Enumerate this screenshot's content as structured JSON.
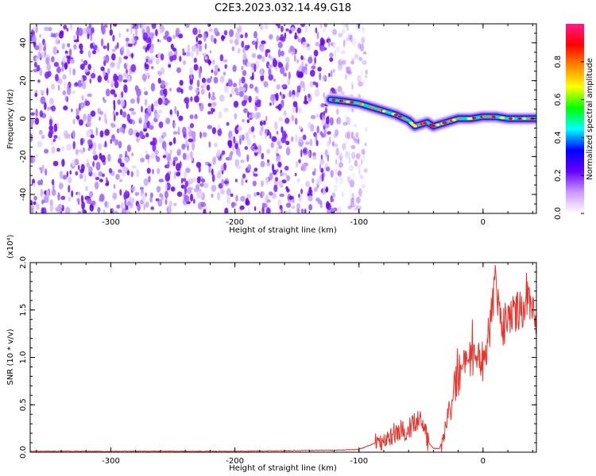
{
  "figure": {
    "title": "C2E3.2023.032.14.49.G18"
  },
  "chart_data": [
    {
      "type": "heatmap",
      "xlabel": "Height of straight line (km)",
      "ylabel": "Frequency (Hz)",
      "xlim": [
        -365,
        43
      ],
      "ylim": [
        -50,
        50
      ],
      "xticks": [
        -300,
        -200,
        -100,
        0
      ],
      "xtick_labels": [
        "-300",
        "-200",
        "-100",
        "0"
      ],
      "yticks": [
        -40,
        -20,
        0,
        20,
        40
      ],
      "ytick_labels": [
        "-40",
        "-20",
        "0",
        "20",
        "40"
      ],
      "noise_region_x": [
        -365,
        -100
      ],
      "signal_trace": {
        "x": [
          -123,
          -110,
          -100,
          -90,
          -80,
          -70,
          -60,
          -55,
          -50,
          -45,
          -40,
          -35,
          -30,
          -25,
          -20,
          -10,
          0,
          10,
          20,
          30,
          43
        ],
        "y": [
          10,
          9,
          8,
          6,
          4,
          2,
          -1,
          -4,
          -3,
          -2,
          -4,
          -3,
          -2,
          -1,
          0,
          0,
          1,
          1,
          0,
          0,
          0
        ]
      },
      "colorbar": {
        "label": "Normalized spectral amplitude",
        "range": [
          0,
          1
        ],
        "ticks": [
          0.0,
          0.2,
          0.4,
          0.6,
          0.8
        ],
        "tick_labels": [
          "0.0",
          "0.2",
          "0.4",
          "0.6",
          "0.8"
        ],
        "colors": [
          "#ffffff",
          "#cc99ff",
          "#6600ff",
          "#0000ff",
          "#00ffff",
          "#00ff00",
          "#ffff00",
          "#ff8800",
          "#ff0000",
          "#ff1a8c"
        ]
      }
    },
    {
      "type": "line",
      "xlabel": "Height of straight line (km)",
      "ylabel": "SNR (10 * v/v)",
      "yscale_label": "(x10⁴)",
      "xlim": [
        -365,
        43
      ],
      "ylim": [
        0,
        2
      ],
      "xticks": [
        -300,
        -200,
        -100,
        0
      ],
      "xtick_labels": [
        "-300",
        "-200",
        "-100",
        "0"
      ],
      "yticks": [
        0,
        0.5,
        1.0,
        1.5,
        2.0
      ],
      "ytick_labels": [
        "0.0",
        "0.5",
        "1.0",
        "1.5",
        "2.0"
      ],
      "color": "#e8322a",
      "series": [
        {
          "x": [
            -365,
            -300,
            -200,
            -120,
            -100,
            -90,
            -80,
            -70,
            -60,
            -55,
            -50,
            -45,
            -40,
            -35,
            -30,
            -25,
            -20,
            -15,
            -10,
            -5,
            0,
            5,
            8,
            10,
            15,
            20,
            25,
            30,
            35,
            40,
            43
          ],
          "y": [
            0.01,
            0.01,
            0.01,
            0.02,
            0.03,
            0.08,
            0.14,
            0.2,
            0.25,
            0.3,
            0.4,
            0.12,
            0.04,
            0.04,
            0.25,
            0.6,
            0.8,
            0.9,
            0.95,
            1.0,
            0.95,
            1.25,
            1.6,
            1.8,
            1.3,
            1.4,
            1.48,
            1.52,
            1.55,
            1.5,
            1.45
          ]
        }
      ]
    }
  ]
}
